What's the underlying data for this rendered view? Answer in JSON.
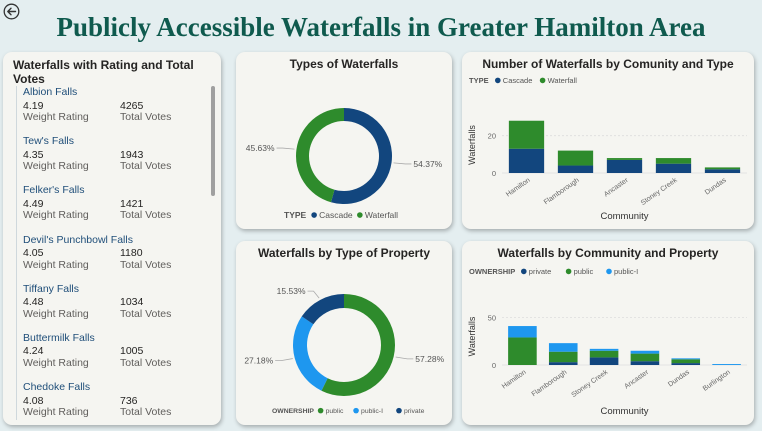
{
  "header": {
    "title": "Publicly Accessible Waterfalls in Greater Hamilton Area"
  },
  "list": {
    "title": "Waterfalls with Rating and Total Votes",
    "rating_label": "Weight Rating",
    "votes_label": "Total Votes",
    "items": [
      {
        "name": "Albion Falls",
        "rating": "4.19",
        "votes": "4265"
      },
      {
        "name": "Tew's Falls",
        "rating": "4.35",
        "votes": "1943"
      },
      {
        "name": "Felker's Falls",
        "rating": "4.49",
        "votes": "1421"
      },
      {
        "name": "Devil's Punchbowl Falls",
        "rating": "4.05",
        "votes": "1180"
      },
      {
        "name": "Tiffany Falls",
        "rating": "4.48",
        "votes": "1034"
      },
      {
        "name": "Buttermilk Falls",
        "rating": "4.24",
        "votes": "1005"
      },
      {
        "name": "Chedoke Falls",
        "rating": "4.08",
        "votes": "736"
      }
    ]
  },
  "colors": {
    "cascade": "#12467e",
    "waterfall": "#2e8b2c",
    "private": "#12467e",
    "public": "#2e8b2c",
    "public_i": "#1e97ef",
    "title": "#0f5a4e"
  },
  "chart_data": [
    {
      "type": "pie",
      "title": "Types of Waterfalls",
      "legend_title": "TYPE",
      "legend_position": "bottom",
      "labels": [
        "Cascade",
        "Waterfall"
      ],
      "values": [
        54.37,
        45.63
      ],
      "value_labels": [
        "54.37%",
        "45.63%"
      ]
    },
    {
      "type": "pie",
      "title": "Waterfalls by Type of Property",
      "legend_title": "OWNERSHIP",
      "legend_position": "bottom",
      "labels": [
        "public",
        "public-I",
        "private"
      ],
      "values": [
        57.28,
        27.18,
        15.53
      ],
      "value_labels": [
        "57.28%",
        "27.18%",
        "15.53%"
      ]
    },
    {
      "type": "bar",
      "title": "Number of Waterfalls by Comunity and Type",
      "legend_title": "TYPE",
      "legend_position": "top-left",
      "categories": [
        "Hamilton",
        "Flamborough",
        "Ancaster",
        "Stoney Creek",
        "Dundas"
      ],
      "series": [
        {
          "name": "Cascade",
          "values": [
            13,
            4,
            7,
            5,
            2
          ]
        },
        {
          "name": "Waterfall",
          "values": [
            15,
            8,
            1,
            3,
            1
          ]
        }
      ],
      "xlabel": "Community",
      "ylabel": "Waterfalls",
      "ylim": [
        0,
        30
      ],
      "yticks": [
        0,
        20
      ],
      "grid": true
    },
    {
      "type": "bar",
      "title": "Waterfalls by Community and Property",
      "legend_title": "OWNERSHIP",
      "legend_position": "top-left",
      "categories": [
        "Hamilton",
        "Flamborough",
        "Stoney Creek",
        "Ancaster",
        "Dundas",
        "Burlington"
      ],
      "series": [
        {
          "name": "private",
          "values": [
            0,
            3,
            8,
            4,
            2,
            0
          ]
        },
        {
          "name": "public",
          "values": [
            29,
            11,
            7,
            8,
            4,
            0
          ]
        },
        {
          "name": "public-I",
          "values": [
            12,
            9,
            2,
            3,
            1,
            1
          ]
        }
      ],
      "xlabel": "Community",
      "ylabel": "Waterfalls",
      "ylim": [
        0,
        60
      ],
      "yticks": [
        0,
        50
      ],
      "grid": true
    }
  ]
}
